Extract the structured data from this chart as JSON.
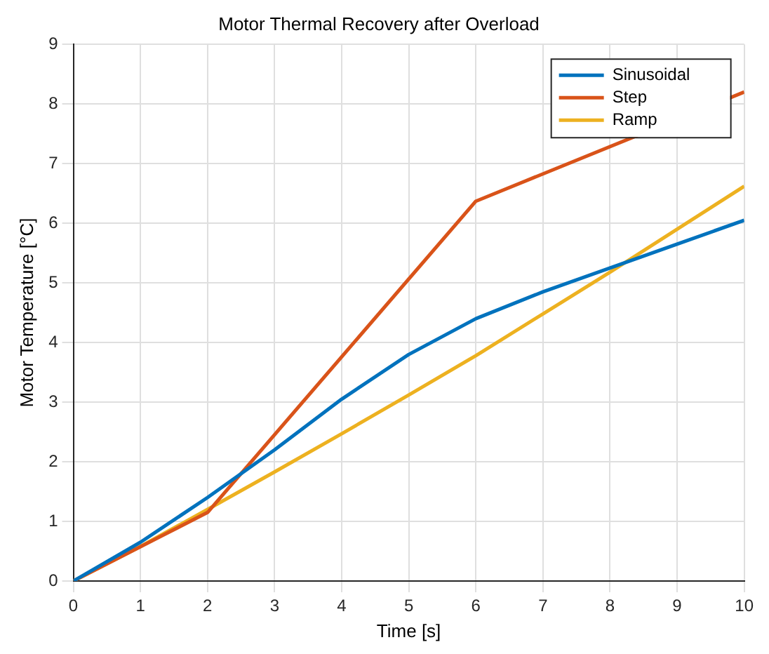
{
  "chart_data": {
    "type": "line",
    "title": "Motor Thermal Recovery after Overload",
    "xlabel": "Time [s]",
    "ylabel": "Motor Temperature [°C]",
    "xlim": [
      0,
      10
    ],
    "xticks": [
      0,
      1,
      2,
      3,
      4,
      5,
      6,
      7,
      8,
      9,
      10
    ],
    "ylim": [
      0,
      9
    ],
    "yticks": [
      0,
      1,
      2,
      3,
      4,
      5,
      6,
      7,
      8,
      9
    ],
    "grid": true,
    "legend": "top right",
    "marker": "none",
    "line_style": "solid",
    "series": [
      {
        "name": "Sinusoidal",
        "color": "#0072bd",
        "x": [
          0,
          1,
          2,
          3,
          4,
          5,
          6,
          7,
          8,
          9,
          10
        ],
        "values": [
          0,
          0.65,
          1.4,
          2.2,
          3.05,
          3.8,
          4.4,
          4.85,
          5.25,
          5.65,
          6.05
        ]
      },
      {
        "name": "Step",
        "color": "#d95319",
        "x": [
          0,
          2,
          6,
          10
        ],
        "values": [
          0,
          1.15,
          6.37,
          8.2
        ]
      },
      {
        "name": "Ramp",
        "color": "#edb120",
        "x": [
          0,
          1,
          2,
          3,
          4,
          5,
          6,
          7,
          8,
          9,
          10
        ],
        "values": [
          0,
          0.58,
          1.2,
          1.83,
          2.47,
          3.12,
          3.78,
          4.48,
          5.18,
          5.9,
          6.62
        ]
      }
    ]
  }
}
